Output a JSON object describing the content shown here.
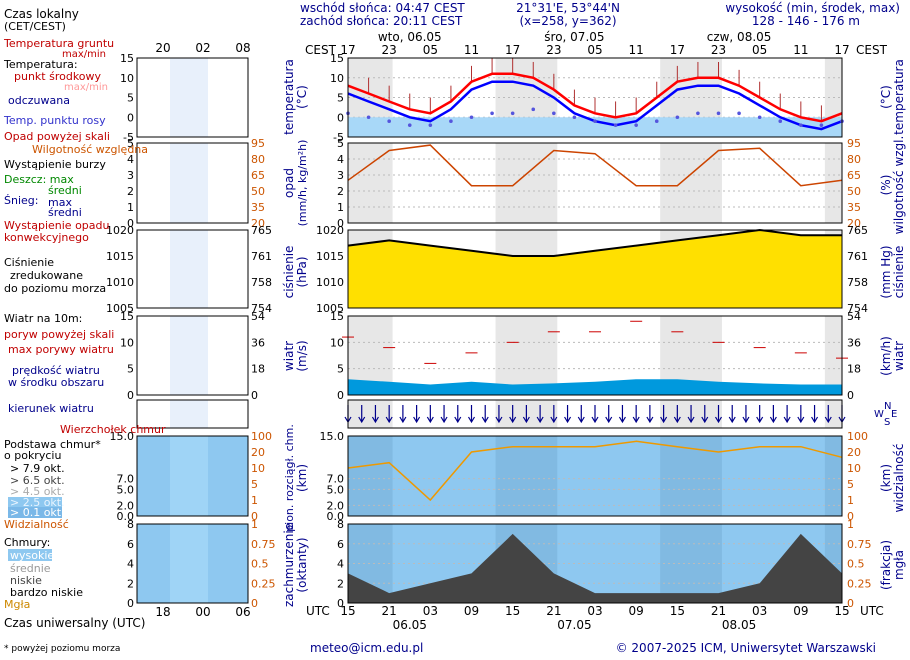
{
  "header": {
    "sunrise": "wschód słońca: 04:47 CEST",
    "sunset": "zachód słońca: 20:11 CEST",
    "coords": "21°31'E, 53°44'N",
    "grid": "(x=258, y=362)",
    "height_label": "wysokość (min, środek, max)",
    "height_values": "128 - 146 - 176 m"
  },
  "legend": {
    "local_time": "Czas lokalny",
    "local_time_sub": "(CET/CEST)",
    "soil_temp": "Temperatura gruntu",
    "soil_temp_sub": "max/min",
    "temperature": "Temperatura:",
    "dew_point": "punkt środkowy",
    "max_min": "max/min",
    "perceived": "odczuwana",
    "dew": "Temp. punktu rosy",
    "precip_above": "Opad powyżej skali",
    "humidity": "Wilgotność względna",
    "storm": "Wystąpienie burzy",
    "rain": "Deszcz: max",
    "rain_mid": "średni",
    "snow": "Śnieg:",
    "snow_max": "max",
    "snow_mid": "średni",
    "conv": "Wystąpienie opadu",
    "conv2": "konwekcyjnego",
    "pressure": "Ciśnienie",
    "pressure2": "zredukowane",
    "pressure3": "do poziomu morza",
    "wind": "Wiatr na 10m:",
    "gust_above": "poryw powyżej skali",
    "gust_max": "max porywy wiatru",
    "wind_speed": "prędkość wiatru",
    "wind_speed2": "w środku obszaru",
    "wind_dir": "kierunek wiatru",
    "cloud_top": "Wierzchołek chmur",
    "cloud_base": "Podstawa chmur*",
    "cloud_base2": "o pokryciu",
    "okt1": "> 7.9 okt.",
    "okt2": "> 6.5 okt.",
    "okt3": "> 4.5 okt.",
    "okt4": "> 2.5 okt.",
    "okt5": "> 0.1 okt.",
    "visibility": "Widzialność",
    "clouds": "Chmury:",
    "high": "wysokie",
    "mid": "średnie",
    "low": "niskie",
    "vlow": "bardzo niskie",
    "fog": "Mgła",
    "utc_time": "Czas uniwersalny (UTC)",
    "footnote": "* powyżej poziomu morza"
  },
  "axes": {
    "cest": "CEST",
    "utc": "UTC",
    "days_top": [
      "wto, 06.05",
      "śro, 07.05",
      "czw, 08.05"
    ],
    "days_bottom": [
      "06.05",
      "07.05",
      "08.05"
    ],
    "hours_top": [
      "17",
      "23",
      "05",
      "11",
      "17",
      "23",
      "05",
      "11",
      "17",
      "23",
      "05",
      "11",
      "17"
    ],
    "hours_bottom": [
      "15",
      "21",
      "03",
      "09",
      "15",
      "21",
      "03",
      "09",
      "15",
      "21",
      "03",
      "09",
      "15"
    ],
    "legend_hours_top": [
      "20",
      "02",
      "08"
    ],
    "legend_hours_bottom": [
      "18",
      "00",
      "06"
    ],
    "temp_label": "temperatura",
    "temp_unit": "(°C)",
    "precip_label": "opad",
    "precip_unit": "(mm/h, kg/m²h)",
    "hum_label": "wilgotność wzgl.",
    "hum_unit": "(%)",
    "press_label": "ciśnienie",
    "press_unit": "(hPa)",
    "press_unit2": "(mm Hg)",
    "wind_label": "wiatr",
    "wind_unit": "(m/s)",
    "wind_unit2": "(km/h)",
    "cloud_label": "pion. rozciągł. chm.",
    "cloud_unit": "(km)",
    "vis_label": "widzialność",
    "vis_unit": "(km)",
    "cover_label": "zachmurzenie",
    "cover_unit": "(oktanty)",
    "fog_label": "mgła",
    "fog_unit": "(frakcja)",
    "compass_n": "N",
    "compass_w": "W",
    "compass_e": "E",
    "compass_s": "S"
  },
  "footer": {
    "email": "meteo@icm.edu.pl",
    "copyright": "© 2007-2025 ICM, Uniwersytet Warszawski"
  },
  "colors": {
    "temp": "#ff0000",
    "perceived": "#0000ff",
    "dew": "#6666ff",
    "humidity": "#cc4400",
    "pressure_fill": "#ffe000",
    "wind_fill": "#0099dd",
    "night": "#e8e8e8",
    "sky": "#8ec8f0"
  },
  "chart_data": [
    {
      "type": "line",
      "name": "temperature",
      "ylim": [
        -5,
        15
      ],
      "x_hours": [
        0,
        3,
        6,
        9,
        12,
        15,
        18,
        21,
        24,
        27,
        30,
        33,
        36,
        39,
        42,
        45,
        48,
        51,
        54,
        57,
        60,
        63,
        66,
        69,
        72
      ],
      "series": [
        {
          "name": "temperatura max",
          "values": [
            8,
            6,
            4,
            2,
            1,
            4,
            9,
            11,
            11,
            10,
            7,
            3,
            1,
            0,
            1,
            5,
            9,
            10,
            10,
            8,
            5,
            2,
            0,
            -1,
            1
          ]
        },
        {
          "name": "odczuwana",
          "values": [
            6,
            4,
            2,
            0,
            -1,
            2,
            7,
            9,
            9,
            8,
            5,
            1,
            -1,
            -2,
            -1,
            3,
            7,
            8,
            8,
            6,
            3,
            0,
            -2,
            -3,
            -1
          ]
        },
        {
          "name": "punkt rosy",
          "values": [
            1,
            0,
            -1,
            -2,
            -2,
            -1,
            0,
            1,
            1,
            2,
            1,
            0,
            -1,
            -2,
            -2,
            -1,
            0,
            1,
            1,
            1,
            0,
            -1,
            -2,
            -2,
            -1
          ]
        }
      ]
    },
    {
      "type": "line",
      "name": "humidity",
      "ylim": [
        20,
        95
      ],
      "x_hours": [
        0,
        6,
        12,
        18,
        24,
        30,
        36,
        42,
        48,
        54,
        60,
        66,
        72
      ],
      "values": [
        60,
        88,
        93,
        55,
        55,
        88,
        85,
        55,
        55,
        88,
        90,
        55,
        60
      ]
    },
    {
      "type": "line",
      "name": "pressure",
      "ylim": [
        1005,
        1020
      ],
      "x_hours": [
        0,
        6,
        12,
        18,
        24,
        30,
        36,
        42,
        48,
        54,
        60,
        66,
        72
      ],
      "values": [
        1017,
        1018,
        1017,
        1016,
        1015,
        1015,
        1016,
        1017,
        1018,
        1019,
        1020,
        1019,
        1019
      ]
    },
    {
      "type": "area",
      "name": "wind",
      "ylim": [
        0,
        15
      ],
      "x_hours": [
        0,
        6,
        12,
        18,
        24,
        30,
        36,
        42,
        48,
        54,
        60,
        66,
        72
      ],
      "series": [
        {
          "name": "prędkość",
          "values": [
            3,
            2.5,
            2,
            2.5,
            2,
            2.2,
            2.5,
            3,
            3,
            2.5,
            2.2,
            2,
            2
          ]
        },
        {
          "name": "porywy",
          "values": [
            11,
            9,
            6,
            8,
            10,
            12,
            12,
            14,
            12,
            10,
            9,
            8,
            7
          ]
        }
      ]
    },
    {
      "type": "line",
      "name": "visibility",
      "ylim": [
        0,
        15
      ],
      "x_hours": [
        0,
        6,
        12,
        18,
        24,
        30,
        36,
        42,
        48,
        54,
        60,
        66,
        72
      ],
      "values": [
        9,
        10,
        3,
        12,
        13,
        13,
        13,
        14,
        13,
        12,
        13,
        13,
        11
      ]
    },
    {
      "type": "area",
      "name": "cloud cover",
      "ylim": [
        0,
        8
      ],
      "x_hours": [
        0,
        6,
        12,
        18,
        24,
        30,
        36,
        42,
        48,
        54,
        60,
        66,
        72
      ],
      "values": [
        3,
        1,
        2,
        3,
        7,
        3,
        1,
        1,
        1,
        1,
        2,
        7,
        3
      ]
    }
  ]
}
